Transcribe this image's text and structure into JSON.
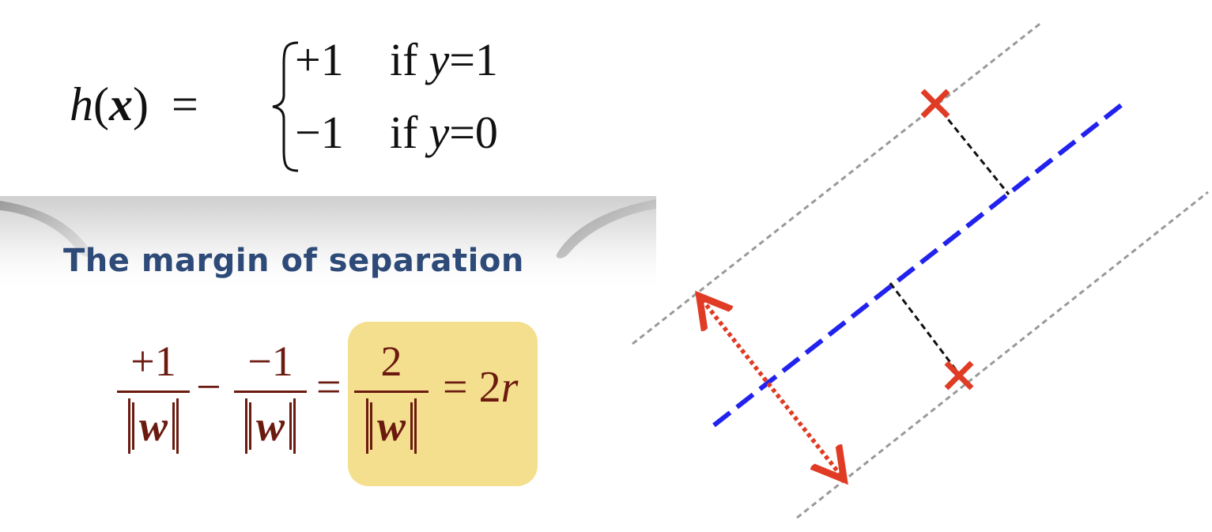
{
  "hypothesis": {
    "lhs_h": "h",
    "lhs_paren_open": "(",
    "lhs_x": "x",
    "lhs_paren_close": ")",
    "lhs_equals": "=",
    "case_positive": {
      "value": "+1",
      "if": "if",
      "var": "y",
      "equals": "=",
      "num": "1"
    },
    "case_negative": {
      "value": "−1",
      "if": "if",
      "var": "y",
      "equals": "=",
      "num": "0"
    }
  },
  "banner": {
    "title": "The margin of separation"
  },
  "margin_equation": {
    "frac1_num": "+1",
    "frac2_num": "−1",
    "frac3_num": "2",
    "den_w": "w",
    "minus": "−",
    "equals1": "=",
    "result_equals": "=",
    "result_coef": "2",
    "result_var": "r"
  },
  "colors": {
    "hyperplane": "#2222ee",
    "margin_lines": "#999999",
    "support_vectors": "#e03b24",
    "distance_arrow": "#e03b24",
    "perpendicular": "#111111",
    "banner_text": "#2e4a78",
    "equation_text": "#6b1a0f",
    "highlight_box": "#f4df8f"
  },
  "icons": {
    "support_vector_marker": "x-cross-icon",
    "margin_width_arrow": "double-headed-arrow-icon"
  }
}
